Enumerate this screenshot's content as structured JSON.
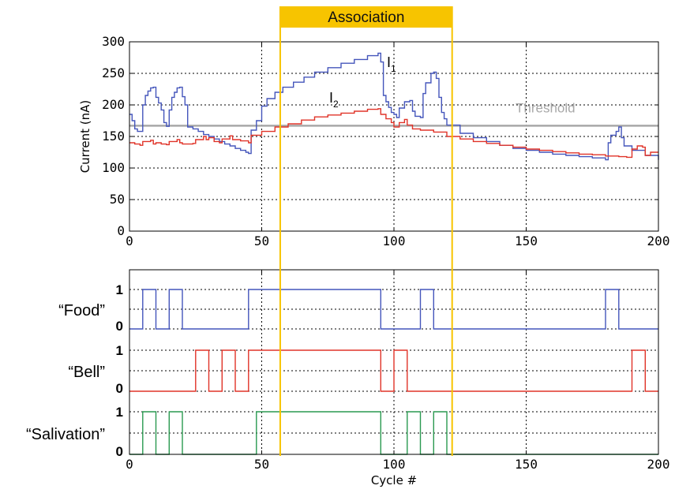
{
  "chart_data": [
    {
      "type": "line",
      "ylabel": "Current (nA)",
      "xlim": [
        0,
        200
      ],
      "ylim": [
        0,
        300
      ],
      "x_ticks": [
        "0",
        "50",
        "100",
        "150",
        "200"
      ],
      "y_ticks": [
        "0",
        "50",
        "100",
        "150",
        "200",
        "250",
        "300"
      ],
      "grid": true,
      "threshold": {
        "label": "Threshold",
        "value": 167,
        "color": "#a8a8a8"
      },
      "series": [
        {
          "name": "I",
          "subscript": "1",
          "color": "#4455bb",
          "points": [
            [
              0,
              185
            ],
            [
              1,
              175
            ],
            [
              2,
              162
            ],
            [
              3,
              158
            ],
            [
              4,
              158
            ],
            [
              5,
              200
            ],
            [
              6,
              215
            ],
            [
              7,
              222
            ],
            [
              8,
              227
            ],
            [
              9,
              228
            ],
            [
              10,
              212
            ],
            [
              11,
              203
            ],
            [
              12,
              192
            ],
            [
              13,
              172
            ],
            [
              14,
              166
            ],
            [
              15,
              192
            ],
            [
              16,
              212
            ],
            [
              17,
              220
            ],
            [
              18,
              227
            ],
            [
              19,
              228
            ],
            [
              20,
              213
            ],
            [
              21,
              200
            ],
            [
              22,
              165
            ],
            [
              24,
              162
            ],
            [
              26,
              158
            ],
            [
              28,
              153
            ],
            [
              30,
              150
            ],
            [
              32,
              146
            ],
            [
              34,
              142
            ],
            [
              36,
              138
            ],
            [
              38,
              135
            ],
            [
              40,
              131
            ],
            [
              42,
              128
            ],
            [
              44,
              125
            ],
            [
              45,
              123
            ],
            [
              46,
              160
            ],
            [
              48,
              175
            ],
            [
              50,
              198
            ],
            [
              52,
              210
            ],
            [
              55,
              220
            ],
            [
              58,
              228
            ],
            [
              62,
              236
            ],
            [
              66,
              244
            ],
            [
              70,
              252
            ],
            [
              75,
              259
            ],
            [
              80,
              266
            ],
            [
              85,
              272
            ],
            [
              90,
              278
            ],
            [
              94,
              282
            ],
            [
              95,
              268
            ],
            [
              96,
              215
            ],
            [
              97,
              205
            ],
            [
              98,
              196
            ],
            [
              99,
              188
            ],
            [
              100,
              185
            ],
            [
              101,
              180
            ],
            [
              102,
              195
            ],
            [
              104,
              205
            ],
            [
              106,
              207
            ],
            [
              107,
              190
            ],
            [
              108,
              182
            ],
            [
              110,
              180
            ],
            [
              111,
              218
            ],
            [
              112,
              235
            ],
            [
              114,
              250
            ],
            [
              115,
              252
            ],
            [
              116,
              242
            ],
            [
              117,
              212
            ],
            [
              118,
              188
            ],
            [
              119,
              178
            ],
            [
              120,
              168
            ],
            [
              125,
              155
            ],
            [
              130,
              148
            ],
            [
              135,
              142
            ],
            [
              140,
              136
            ],
            [
              145,
              131
            ],
            [
              150,
              128
            ],
            [
              155,
              125
            ],
            [
              160,
              122
            ],
            [
              165,
              120
            ],
            [
              170,
              118
            ],
            [
              175,
              116
            ],
            [
              180,
              113
            ],
            [
              181,
              140
            ],
            [
              182,
              152
            ],
            [
              184,
              158
            ],
            [
              185,
              165
            ],
            [
              186,
              148
            ],
            [
              187,
              135
            ],
            [
              190,
              128
            ],
            [
              195,
              120
            ],
            [
              200,
              113
            ]
          ]
        },
        {
          "name": "I",
          "subscript": "2",
          "color": "#e03328",
          "points": [
            [
              0,
              140
            ],
            [
              2,
              138
            ],
            [
              4,
              136
            ],
            [
              5,
              142
            ],
            [
              8,
              144
            ],
            [
              9,
              138
            ],
            [
              10,
              140
            ],
            [
              12,
              138
            ],
            [
              14,
              137
            ],
            [
              15,
              142
            ],
            [
              18,
              145
            ],
            [
              19,
              140
            ],
            [
              20,
              138
            ],
            [
              22,
              138
            ],
            [
              24,
              139
            ],
            [
              25,
              145
            ],
            [
              28,
              150
            ],
            [
              29,
              145
            ],
            [
              30,
              148
            ],
            [
              32,
              142
            ],
            [
              34,
              140
            ],
            [
              35,
              146
            ],
            [
              38,
              151
            ],
            [
              39,
              145
            ],
            [
              40,
              145
            ],
            [
              42,
              143
            ],
            [
              45,
              140
            ],
            [
              46,
              152
            ],
            [
              50,
              158
            ],
            [
              55,
              165
            ],
            [
              60,
              170
            ],
            [
              65,
              176
            ],
            [
              70,
              181
            ],
            [
              75,
              184
            ],
            [
              80,
              187
            ],
            [
              85,
              190
            ],
            [
              90,
              193
            ],
            [
              94,
              194
            ],
            [
              95,
              185
            ],
            [
              97,
              178
            ],
            [
              99,
              172
            ],
            [
              100,
              165
            ],
            [
              102,
              172
            ],
            [
              104,
              177
            ],
            [
              105,
              168
            ],
            [
              107,
              162
            ],
            [
              110,
              160
            ],
            [
              115,
              157
            ],
            [
              120,
              150
            ],
            [
              125,
              146
            ],
            [
              130,
              142
            ],
            [
              135,
              139
            ],
            [
              140,
              136
            ],
            [
              145,
              133
            ],
            [
              150,
              130
            ],
            [
              155,
              128
            ],
            [
              160,
              126
            ],
            [
              165,
              124
            ],
            [
              170,
              122
            ],
            [
              175,
              121
            ],
            [
              180,
              119
            ],
            [
              185,
              118
            ],
            [
              188,
              117
            ],
            [
              190,
              130
            ],
            [
              192,
              135
            ],
            [
              194,
              133
            ],
            [
              195,
              120
            ],
            [
              197,
              125
            ],
            [
              200,
              125
            ]
          ]
        }
      ]
    },
    {
      "type": "line",
      "xlabel": "Cycle #",
      "xlim": [
        0,
        200
      ],
      "x_ticks": [
        "0",
        "50",
        "100",
        "150",
        "200"
      ],
      "grid": true,
      "rows": [
        {
          "label": "“Food”",
          "color": "#4455bb",
          "on_intervals": [
            [
              5,
              10
            ],
            [
              15,
              20
            ],
            [
              45,
              95
            ],
            [
              110,
              115
            ],
            [
              180,
              185
            ]
          ]
        },
        {
          "label": "“Bell”",
          "color": "#e03328",
          "on_intervals": [
            [
              25,
              30
            ],
            [
              35,
              40
            ],
            [
              45,
              95
            ],
            [
              100,
              105
            ],
            [
              190,
              195
            ]
          ]
        },
        {
          "label": "“Salivation”",
          "color": "#2a9950",
          "on_intervals": [
            [
              5,
              10
            ],
            [
              15,
              20
            ],
            [
              48,
              95
            ],
            [
              105,
              110
            ],
            [
              115,
              120
            ]
          ]
        }
      ],
      "level_labels": [
        "1",
        "0"
      ]
    }
  ],
  "association": {
    "label": "Association",
    "x_start": 57,
    "x_end": 122,
    "color": "#f7c400"
  }
}
